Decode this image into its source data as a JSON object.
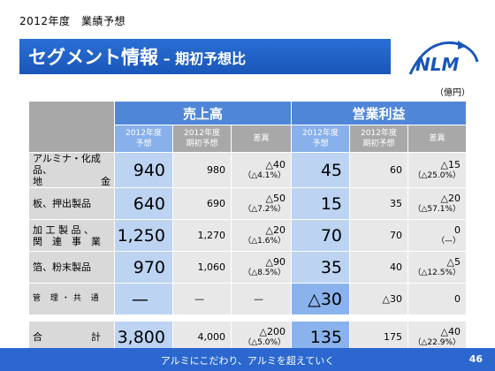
{
  "header": {
    "small_title": "2012年度　業績予想"
  },
  "title": {
    "main": "セグメント情報",
    "dash": " – ",
    "sub": "期初予想比"
  },
  "unit": "（億円）",
  "table": {
    "groups": [
      "売上高",
      "営業利益"
    ],
    "subheaders": [
      "2012年度\n予想",
      "2012年度\n期初予想",
      "差異",
      "2012年度\n予想",
      "2012年度\n期初予想",
      "差異"
    ],
    "rows": [
      {
        "label": "アルミナ・化成品、\n地　　　　　　金",
        "sales": "940",
        "sales_initial": "980",
        "sales_diff": "△40",
        "sales_diff_pct": "（△4.1%）",
        "op": "45",
        "op_initial": "60",
        "op_diff": "△15",
        "op_diff_pct": "（△25.0%）"
      },
      {
        "label": "板、押出製品",
        "sales": "640",
        "sales_initial": "690",
        "sales_diff": "△50",
        "sales_diff_pct": "（△7.2%）",
        "op": "15",
        "op_initial": "35",
        "op_diff": "△20",
        "op_diff_pct": "（△57.1%）"
      },
      {
        "label": "加 工 製 品 、\n関　連　事　業",
        "sales": "1,250",
        "sales_initial": "1,270",
        "sales_diff": "△20",
        "sales_diff_pct": "（△1.6%）",
        "op": "70",
        "op_initial": "70",
        "op_diff": "0",
        "op_diff_pct": "（—）"
      },
      {
        "label": "箔、粉末製品",
        "sales": "970",
        "sales_initial": "1,060",
        "sales_diff": "△90",
        "sales_diff_pct": "（△8.5%）",
        "op": "35",
        "op_initial": "40",
        "op_diff": "△5",
        "op_diff_pct": "（△12.5%）"
      },
      {
        "label": "管 理・共 通",
        "sales": "—",
        "sales_initial": "—",
        "sales_diff": "—",
        "sales_diff_pct": "",
        "op": "△30",
        "op_initial": "△30",
        "op_diff": "0",
        "op_diff_pct": ""
      }
    ],
    "total": {
      "label": "合　　　　　計",
      "sales": "3,800",
      "sales_initial": "4,000",
      "sales_diff": "△200",
      "sales_diff_pct": "（△5.0%）",
      "op": "135",
      "op_initial": "175",
      "op_diff": "△40",
      "op_diff_pct": "（△22.9%）"
    }
  },
  "footer": {
    "tagline": "アルミにこだわり、アルミを超えていく",
    "page": "46"
  },
  "logo": {
    "text": "NLM"
  },
  "colors": {
    "brand_blue": "#2b67cf",
    "header_blue": "#4f86d8",
    "cell_blue": "#bcd3f2"
  }
}
